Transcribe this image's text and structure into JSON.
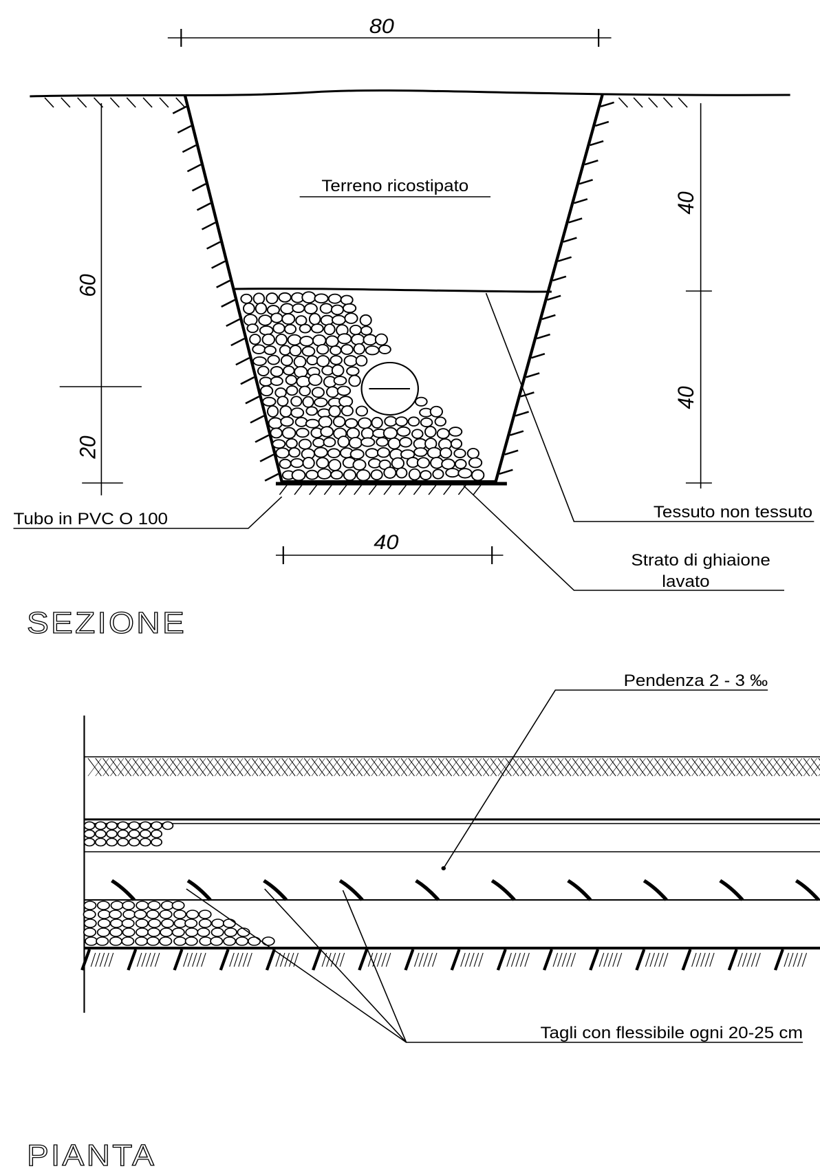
{
  "sezione": {
    "title": "SEZIONE",
    "dimensions": {
      "top_width": "80",
      "bottom_width": "40",
      "left_total": "60",
      "left_bottom": "20",
      "right_top": "40",
      "right_bottom": "40"
    },
    "labels": {
      "fill": "Terreno ricostipato",
      "pipe": "Tubo in PVC O 100",
      "fabric": "Tessuto non tessuto",
      "gravel": [
        "Strato di ghiaione",
        "lavato"
      ]
    }
  },
  "pianta": {
    "title": "PIANTA",
    "labels": {
      "slope": "Pendenza 2 - 3 ‰",
      "cuts": "Tagli con flessibile ogni 20-25 cm"
    }
  }
}
